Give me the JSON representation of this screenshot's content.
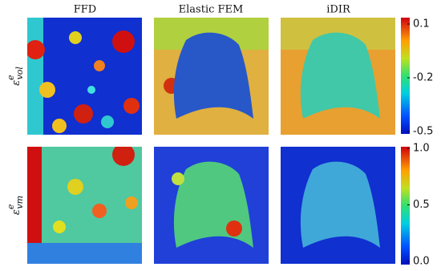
{
  "columns": [
    "FFD",
    "Elastic FEM",
    "iDIR"
  ],
  "rows": [
    {
      "label": {
        "base": "ε",
        "sup": "e",
        "sub": "vol"
      },
      "colorbar": {
        "ylim": [
          -0.5,
          0.1
        ],
        "yticks": [
          0.1,
          -0.2,
          -0.5
        ]
      }
    },
    {
      "label": {
        "base": "ε",
        "sup": "e",
        "sub": "vm"
      },
      "colorbar": {
        "ylim": [
          0,
          1
        ],
        "yticks": [
          {
            "value": 1,
            "label": "1.0"
          },
          0.5,
          {
            "value": 0,
            "label": "0.0"
          }
        ]
      }
    }
  ]
}
